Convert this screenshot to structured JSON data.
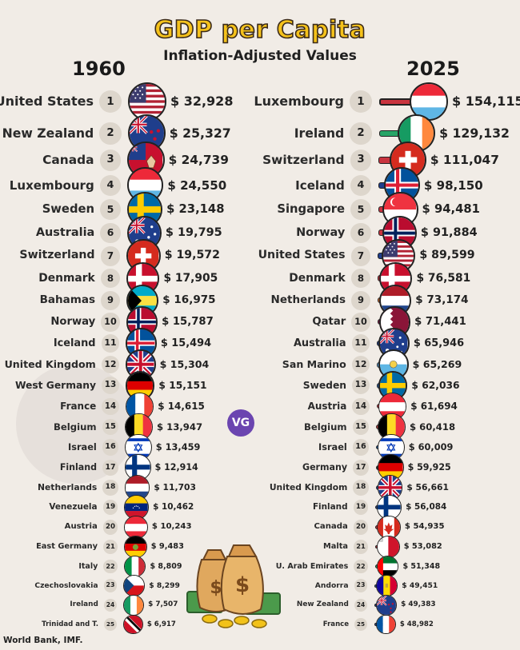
{
  "title": "GDP per Capita",
  "subtitle": "Inflation-Adjusted Values",
  "source": "World Bank, IMF.",
  "logo": "VG",
  "chart_data": [
    {
      "type": "table",
      "year": "1960",
      "rows": [
        {
          "rank": "1",
          "country": "United States",
          "value": "$ 32,928",
          "num": 32928,
          "flag": "us"
        },
        {
          "rank": "2",
          "country": "New Zealand",
          "value": "$ 25,327",
          "num": 25327,
          "flag": "nz"
        },
        {
          "rank": "3",
          "country": "Canada",
          "value": "$ 24,739",
          "num": 24739,
          "flag": "ca_old"
        },
        {
          "rank": "4",
          "country": "Luxembourg",
          "value": "$ 24,550",
          "num": 24550,
          "flag": "lu"
        },
        {
          "rank": "5",
          "country": "Sweden",
          "value": "$ 23,148",
          "num": 23148,
          "flag": "se"
        },
        {
          "rank": "6",
          "country": "Australia",
          "value": "$ 19,795",
          "num": 19795,
          "flag": "au"
        },
        {
          "rank": "7",
          "country": "Switzerland",
          "value": "$ 19,572",
          "num": 19572,
          "flag": "ch"
        },
        {
          "rank": "8",
          "country": "Denmark",
          "value": "$ 17,905",
          "num": 17905,
          "flag": "dk"
        },
        {
          "rank": "9",
          "country": "Bahamas",
          "value": "$ 16,975",
          "num": 16975,
          "flag": "bs"
        },
        {
          "rank": "10",
          "country": "Norway",
          "value": "$ 15,787",
          "num": 15787,
          "flag": "no"
        },
        {
          "rank": "11",
          "country": "Iceland",
          "value": "$ 15,494",
          "num": 15494,
          "flag": "is"
        },
        {
          "rank": "12",
          "country": "United Kingdom",
          "value": "$ 15,304",
          "num": 15304,
          "flag": "gb"
        },
        {
          "rank": "13",
          "country": "West Germany",
          "value": "$ 15,151",
          "num": 15151,
          "flag": "de"
        },
        {
          "rank": "14",
          "country": "France",
          "value": "$ 14,615",
          "num": 14615,
          "flag": "fr"
        },
        {
          "rank": "15",
          "country": "Belgium",
          "value": "$ 13,947",
          "num": 13947,
          "flag": "be"
        },
        {
          "rank": "16",
          "country": "Israel",
          "value": "$ 13,459",
          "num": 13459,
          "flag": "il"
        },
        {
          "rank": "17",
          "country": "Finland",
          "value": "$ 12,914",
          "num": 12914,
          "flag": "fi"
        },
        {
          "rank": "18",
          "country": "Netherlands",
          "value": "$ 11,703",
          "num": 11703,
          "flag": "nl"
        },
        {
          "rank": "19",
          "country": "Venezuela",
          "value": "$ 10,462",
          "num": 10462,
          "flag": "ve"
        },
        {
          "rank": "20",
          "country": "Austria",
          "value": "$ 10,243",
          "num": 10243,
          "flag": "at"
        },
        {
          "rank": "21",
          "country": "East Germany",
          "value": "$ 9,483",
          "num": 9483,
          "flag": "ddr"
        },
        {
          "rank": "22",
          "country": "Italy",
          "value": "$ 8,809",
          "num": 8809,
          "flag": "it"
        },
        {
          "rank": "23",
          "country": "Czechoslovakia",
          "value": "$ 8,299",
          "num": 8299,
          "flag": "cz"
        },
        {
          "rank": "24",
          "country": "Ireland",
          "value": "$ 7,507",
          "num": 7507,
          "flag": "ie"
        },
        {
          "rank": "25",
          "country": "Trinidad and T.",
          "value": "$ 6,917",
          "num": 6917,
          "flag": "tt"
        }
      ]
    },
    {
      "type": "bar",
      "year": "2025",
      "rows": [
        {
          "rank": "1",
          "country": "Luxembourg",
          "value": "$ 154,115",
          "num": 154115,
          "flag": "lu",
          "bar_color": "#c9343f"
        },
        {
          "rank": "2",
          "country": "Ireland",
          "value": "$ 129,132",
          "num": 129132,
          "flag": "ie",
          "bar_color": "#27a567"
        },
        {
          "rank": "3",
          "country": "Switzerland",
          "value": "$ 111,047",
          "num": 111047,
          "flag": "ch",
          "bar_color": "#c9343f"
        },
        {
          "rank": "4",
          "country": "Iceland",
          "value": "$ 98,150",
          "num": 98150,
          "flag": "is",
          "bar_color": "#1f3e8c"
        },
        {
          "rank": "5",
          "country": "Singapore",
          "value": "$ 94,481",
          "num": 94481,
          "flag": "sg",
          "bar_color": "#c9343f"
        },
        {
          "rank": "6",
          "country": "Norway",
          "value": "$ 91,884",
          "num": 91884,
          "flag": "no",
          "bar_color": "#c9343f"
        },
        {
          "rank": "7",
          "country": "United States",
          "value": "$ 89,599",
          "num": 89599,
          "flag": "us",
          "bar_color": "#1f3e8c"
        },
        {
          "rank": "8",
          "country": "Denmark",
          "value": "$ 76,581",
          "num": 76581,
          "flag": "dk",
          "bar_color": "#c9343f"
        },
        {
          "rank": "9",
          "country": "Netherlands",
          "value": "$ 73,174",
          "num": 73174,
          "flag": "nl",
          "bar_color": "#d2692a"
        },
        {
          "rank": "10",
          "country": "Qatar",
          "value": "$ 71,441",
          "num": 71441,
          "flag": "qa",
          "bar_color": "#7a1c43"
        },
        {
          "rank": "11",
          "country": "Australia",
          "value": "$ 65,946",
          "num": 65946,
          "flag": "au",
          "bar_color": "#1f3e8c"
        },
        {
          "rank": "12",
          "country": "San Marino",
          "value": "$ 65,269",
          "num": 65269,
          "flag": "sm",
          "bar_color": "#5aa7e0"
        },
        {
          "rank": "13",
          "country": "Sweden",
          "value": "$ 62,036",
          "num": 62036,
          "flag": "se",
          "bar_color": "#2360a8"
        },
        {
          "rank": "14",
          "country": "Austria",
          "value": "$ 61,694",
          "num": 61694,
          "flag": "at",
          "bar_color": "#c9343f"
        },
        {
          "rank": "15",
          "country": "Belgium",
          "value": "$ 60,418",
          "num": 60418,
          "flag": "be",
          "bar_color": "#d23a3a"
        },
        {
          "rank": "16",
          "country": "Israel",
          "value": "$ 60,009",
          "num": 60009,
          "flag": "il",
          "bar_color": "#2360a8"
        },
        {
          "rank": "17",
          "country": "Germany",
          "value": "$ 59,925",
          "num": 59925,
          "flag": "de",
          "bar_color": "#222222"
        },
        {
          "rank": "18",
          "country": "United Kingdom",
          "value": "$ 56,661",
          "num": 56661,
          "flag": "gb",
          "bar_color": "#1f3e8c"
        },
        {
          "rank": "19",
          "country": "Finland",
          "value": "$ 56,084",
          "num": 56084,
          "flag": "fi",
          "bar_color": "#1f3e8c"
        },
        {
          "rank": "20",
          "country": "Canada",
          "value": "$ 54,935",
          "num": 54935,
          "flag": "ca",
          "bar_color": "#c9343f"
        },
        {
          "rank": "21",
          "country": "Malta",
          "value": "$ 53,082",
          "num": 53082,
          "flag": "mt",
          "bar_color": "#c9343f"
        },
        {
          "rank": "22",
          "country": "U. Arab Emirates",
          "value": "$ 51,348",
          "num": 51348,
          "flag": "ae",
          "bar_color": "#27a567"
        },
        {
          "rank": "23",
          "country": "Andorra",
          "value": "$ 49,451",
          "num": 49451,
          "flag": "ad",
          "bar_color": "#2360a8"
        },
        {
          "rank": "24",
          "country": "New Zealand",
          "value": "$ 49,383",
          "num": 49383,
          "flag": "nz",
          "bar_color": "#1f3e8c"
        },
        {
          "rank": "25",
          "country": "France",
          "value": "$ 48,982",
          "num": 48982,
          "flag": "fr",
          "bar_color": "#1f3e8c"
        }
      ]
    }
  ]
}
